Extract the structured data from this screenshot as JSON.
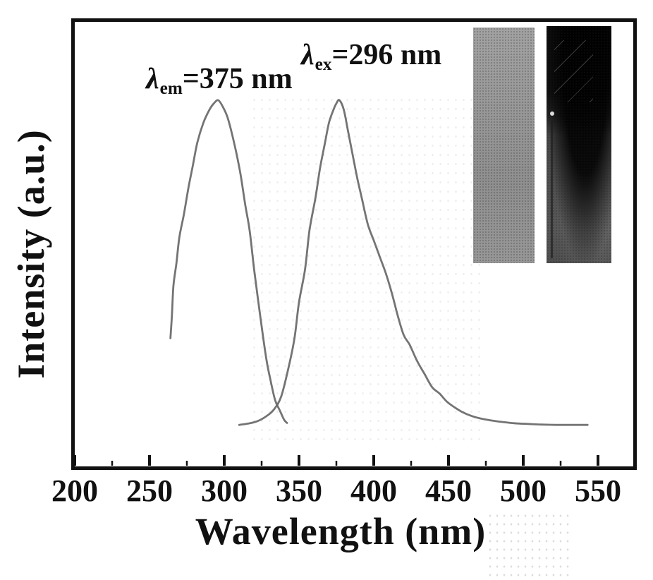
{
  "chart_data": {
    "type": "line",
    "title": "",
    "xlabel": "Wavelength (nm)",
    "ylabel": "Intensity (a.u.)",
    "xlim": [
      198,
      576
    ],
    "ylim": [
      0,
      1.08
    ],
    "x_ticks": [
      200,
      250,
      300,
      350,
      400,
      450,
      500,
      550
    ],
    "x_minor_ticks": [
      225,
      275,
      325,
      375,
      425,
      475,
      525
    ],
    "grid": false,
    "legend_position": "none",
    "frame_color": "#111111",
    "curve_color": "#686868",
    "annotations": [
      {
        "lambda": "λ",
        "sub": "em",
        "rest": "=375 nm"
      },
      {
        "lambda": "λ",
        "sub": "ex",
        "rest": "=296 nm"
      }
    ],
    "series": [
      {
        "name": "Excitation spectrum (monitored at em 375 nm)",
        "peak_nm": 296,
        "color": "#686868",
        "points": [
          [
            264,
            0.27
          ],
          [
            265,
            0.34
          ],
          [
            266,
            0.43
          ],
          [
            268,
            0.5
          ],
          [
            270,
            0.58
          ],
          [
            273,
            0.65
          ],
          [
            276,
            0.73
          ],
          [
            279,
            0.8
          ],
          [
            282,
            0.87
          ],
          [
            286,
            0.93
          ],
          [
            290,
            0.97
          ],
          [
            293,
            0.99
          ],
          [
            296,
            1.0
          ],
          [
            299,
            0.98
          ],
          [
            302,
            0.95
          ],
          [
            305,
            0.9
          ],
          [
            308,
            0.84
          ],
          [
            311,
            0.77
          ],
          [
            314,
            0.68
          ],
          [
            317,
            0.6
          ],
          [
            320,
            0.48
          ],
          [
            324,
            0.34
          ],
          [
            328,
            0.21
          ],
          [
            331,
            0.14
          ],
          [
            334,
            0.08
          ],
          [
            337,
            0.05
          ],
          [
            340,
            0.02
          ],
          [
            342,
            0.01
          ]
        ]
      },
      {
        "name": "Emission spectrum (excited at 296 nm)",
        "peak_nm": 375,
        "color": "#686868",
        "points": [
          [
            310,
            0.004
          ],
          [
            316,
            0.008
          ],
          [
            322,
            0.015
          ],
          [
            328,
            0.03
          ],
          [
            333,
            0.05
          ],
          [
            338,
            0.09
          ],
          [
            343,
            0.18
          ],
          [
            347,
            0.27
          ],
          [
            350,
            0.38
          ],
          [
            354,
            0.48
          ],
          [
            357,
            0.6
          ],
          [
            361,
            0.7
          ],
          [
            364,
            0.79
          ],
          [
            367,
            0.86
          ],
          [
            370,
            0.93
          ],
          [
            373,
            0.97
          ],
          [
            375,
            0.99
          ],
          [
            377,
            1.0
          ],
          [
            380,
            0.97
          ],
          [
            383,
            0.9
          ],
          [
            386,
            0.83
          ],
          [
            389,
            0.76
          ],
          [
            392,
            0.7
          ],
          [
            396,
            0.62
          ],
          [
            400,
            0.57
          ],
          [
            404,
            0.52
          ],
          [
            408,
            0.47
          ],
          [
            412,
            0.41
          ],
          [
            416,
            0.34
          ],
          [
            420,
            0.28
          ],
          [
            424,
            0.25
          ],
          [
            429,
            0.2
          ],
          [
            434,
            0.16
          ],
          [
            439,
            0.12
          ],
          [
            444,
            0.1
          ],
          [
            449,
            0.075
          ],
          [
            454,
            0.058
          ],
          [
            459,
            0.044
          ],
          [
            465,
            0.032
          ],
          [
            471,
            0.024
          ],
          [
            478,
            0.018
          ],
          [
            486,
            0.013
          ],
          [
            494,
            0.009
          ],
          [
            503,
            0.007
          ],
          [
            512,
            0.005
          ],
          [
            522,
            0.004
          ],
          [
            532,
            0.004
          ],
          [
            543,
            0.004
          ]
        ]
      }
    ]
  },
  "inset": {
    "photos": [
      {
        "position": "left",
        "base_color": "#999999"
      },
      {
        "position": "right",
        "top_color": "#0d0d0d",
        "bottom_color": "#525252"
      }
    ]
  }
}
